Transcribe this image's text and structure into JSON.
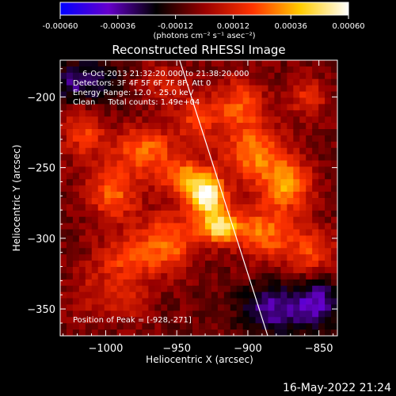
{
  "chart_data": {
    "type": "heatmap",
    "title": "Reconstructed RHESSI Image",
    "xlabel": "Heliocentric X (arcsec)",
    "ylabel": "Heliocentric Y (arcsec)",
    "xlim": [
      -1032,
      -837
    ],
    "ylim": [
      -369,
      -174
    ],
    "x_ticks": [
      -1000,
      -950,
      -900,
      -850
    ],
    "x_tick_labels": [
      "−1000",
      "−950",
      "−900",
      "−850"
    ],
    "y_ticks": [
      -350,
      -300,
      -250,
      -200
    ],
    "y_tick_labels": [
      "−350",
      "−300",
      "−250",
      "−200"
    ],
    "colorbar": {
      "range": [
        -0.0006,
        0.0006
      ],
      "ticks": [
        -0.0006,
        -0.00036,
        -0.00012,
        0.00012,
        0.00036,
        0.0006
      ],
      "tick_labels": [
        "-0.00060",
        "-0.00036",
        "-0.00012",
        "0.00012",
        "0.00036",
        "0.00060"
      ],
      "units_label": "(photons cm⁻² s⁻¹ asec⁻²)",
      "colormap": [
        "#0000ff",
        "#6600cc",
        "#000000",
        "#990000",
        "#ff3300",
        "#ffcc00",
        "#ffffff"
      ]
    },
    "info_lines": [
      "6-Oct-2013 21:32:20.000 to 21:38:20.000",
      "Detectors: 3F 4F 5F 6F 7F 8F, Att 0",
      "Energy Range: 12.0 - 25.0 keV",
      "Clean     Total counts: 1.49e+04"
    ],
    "peak_label": "Position of Peak = [-928,-271]",
    "peak": [
      -928,
      -271
    ],
    "limb_line": [
      [
        -948,
        -174
      ],
      [
        -886,
        -369
      ]
    ],
    "sources": [
      {
        "x": -928,
        "y": -271,
        "value": 0.0006,
        "sx": 9,
        "sy": 9
      },
      {
        "x": -920,
        "y": -292,
        "value": 0.00052,
        "sx": 10,
        "sy": 8
      },
      {
        "x": -942,
        "y": -258,
        "value": 0.00038,
        "sx": 12,
        "sy": 10
      },
      {
        "x": -972,
        "y": -238,
        "value": 0.00034,
        "sx": 14,
        "sy": 12
      },
      {
        "x": -995,
        "y": -268,
        "value": 0.0003,
        "sx": 13,
        "sy": 14
      },
      {
        "x": -985,
        "y": -315,
        "value": 0.00025,
        "sx": 16,
        "sy": 12
      },
      {
        "x": -955,
        "y": -302,
        "value": 0.00032,
        "sx": 14,
        "sy": 14
      },
      {
        "x": -895,
        "y": -240,
        "value": 0.00036,
        "sx": 15,
        "sy": 14
      },
      {
        "x": -872,
        "y": -262,
        "value": 0.0004,
        "sx": 12,
        "sy": 12
      },
      {
        "x": -888,
        "y": -296,
        "value": 0.00034,
        "sx": 14,
        "sy": 13
      },
      {
        "x": -855,
        "y": -310,
        "value": 0.00026,
        "sx": 12,
        "sy": 12
      },
      {
        "x": -905,
        "y": -205,
        "value": 0.00028,
        "sx": 12,
        "sy": 13
      },
      {
        "x": -935,
        "y": -215,
        "value": 0.00024,
        "sx": 12,
        "sy": 12
      },
      {
        "x": -1015,
        "y": -225,
        "value": 0.00024,
        "sx": 11,
        "sy": 14
      },
      {
        "x": -1010,
        "y": -340,
        "value": 0.00012,
        "sx": 12,
        "sy": 12
      },
      {
        "x": -985,
        "y": -345,
        "value": 0.00014,
        "sx": 12,
        "sy": 10
      },
      {
        "x": -858,
        "y": -200,
        "value": 0.0002,
        "sx": 10,
        "sy": 10
      },
      {
        "x": -960,
        "y": -190,
        "value": 0.00016,
        "sx": 12,
        "sy": 10
      },
      {
        "x": -880,
        "y": -350,
        "value": -0.0003,
        "sx": 18,
        "sy": 12
      },
      {
        "x": -850,
        "y": -345,
        "value": -0.00028,
        "sx": 10,
        "sy": 12
      },
      {
        "x": -1005,
        "y": -190,
        "value": -0.0002,
        "sx": 12,
        "sy": 12
      },
      {
        "x": -1025,
        "y": -190,
        "value": -0.00022,
        "sx": 8,
        "sy": 10
      }
    ]
  },
  "footer": {
    "date": "16-May-2022 21:24"
  }
}
